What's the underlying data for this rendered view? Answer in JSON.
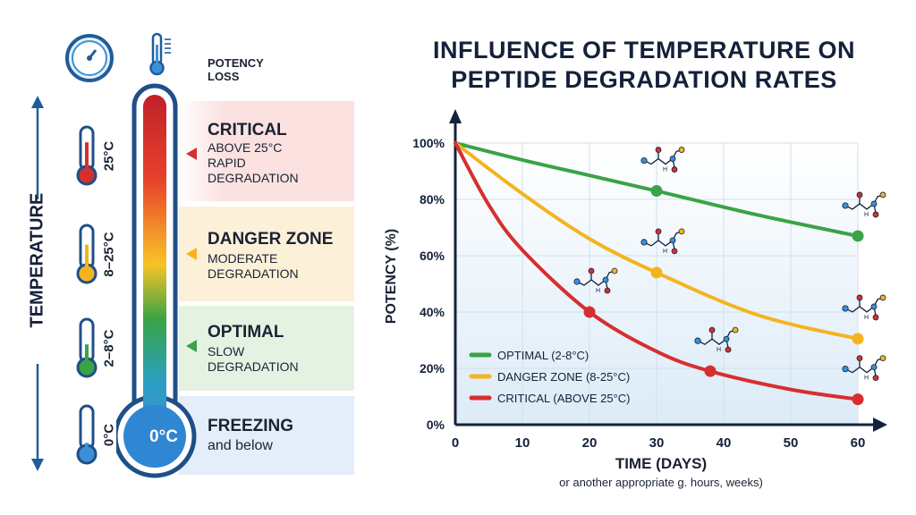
{
  "left_panel": {
    "axis_label": "TEMPERATURE",
    "header_label": "POTENCY LOSS",
    "bulb_label": "0°C",
    "icons": [
      "clock-gauge-icon",
      "thermometer-icon"
    ],
    "zones": [
      {
        "title": "CRITICAL",
        "sub": "ABOVE 25°C\nRAPID\nDEGRADATION",
        "temp": "25°C",
        "color": "#d62f2f",
        "bg": "#fbe1e0"
      },
      {
        "title": "DANGER ZONE",
        "sub": "MODERATE\nDEGRADATION",
        "temp": "8–25°C",
        "color": "#f4b41f",
        "bg": "#fdf0d8"
      },
      {
        "title": "OPTIMAL",
        "sub": "SLOW\nDEGRADATION",
        "temp": "2–8°C",
        "color": "#3aa346",
        "bg": "#e4f2e2"
      },
      {
        "title": "FREEZING",
        "sub": "and below",
        "temp": "0°C",
        "color": "#3b8fd6",
        "bg": "#e3eefa"
      }
    ]
  },
  "chart_data": {
    "type": "line",
    "title": "INFLUENCE OF TEMPERATURE ON PEPTIDE DEGRADATION RATES",
    "xlabel": "TIME (DAYS)",
    "xlabel_note": "or another appropriate g. hours, weeks)",
    "ylabel": "POTENCY (%)",
    "xlim": [
      0,
      60
    ],
    "ylim": [
      0,
      100
    ],
    "xticks": [
      "0",
      "10",
      "20",
      "30",
      "40",
      "50",
      "60"
    ],
    "yticks": [
      "0%",
      "20%",
      "40%",
      "60%",
      "80%",
      "100%"
    ],
    "grid": true,
    "legend": "bottom-left",
    "series": [
      {
        "name": "OPTIMAL (2-8°C)",
        "color": "#3aa346",
        "points": [
          [
            0,
            100
          ],
          [
            10,
            94
          ],
          [
            20,
            88.5
          ],
          [
            30,
            83
          ],
          [
            45,
            74.5
          ],
          [
            60,
            67
          ]
        ],
        "markers": [
          30,
          60
        ]
      },
      {
        "name": "DANGER ZONE (8-25°C)",
        "color": "#f4b41f",
        "points": [
          [
            0,
            100
          ],
          [
            10,
            82
          ],
          [
            20,
            66
          ],
          [
            30,
            54
          ],
          [
            45,
            39
          ],
          [
            60,
            30.5
          ]
        ],
        "markers": [
          30,
          60
        ]
      },
      {
        "name": "CRITICAL (ABOVE 25°C)",
        "color": "#d62f2f",
        "points": [
          [
            0,
            100
          ],
          [
            5,
            78
          ],
          [
            10,
            62
          ],
          [
            20,
            40
          ],
          [
            30,
            26
          ],
          [
            38,
            19
          ],
          [
            50,
            12.5
          ],
          [
            60,
            9
          ]
        ],
        "markers": [
          20,
          38,
          60
        ]
      }
    ]
  }
}
